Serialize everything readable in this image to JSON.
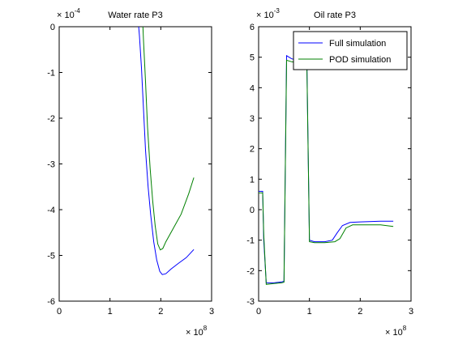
{
  "chart_data": [
    {
      "type": "line",
      "title": "Water rate P3",
      "xlim": [
        0,
        3
      ],
      "ylim": [
        -6,
        0
      ],
      "x_ticks": [
        0,
        1,
        2,
        3
      ],
      "y_ticks": [
        0,
        -1,
        -2,
        -3,
        -4,
        -5,
        -6
      ],
      "x_exponent": {
        "base": "× 10",
        "power": "8"
      },
      "y_exponent": {
        "base": "× 10",
        "power": "-4"
      },
      "series": [
        {
          "color": "#0000ff",
          "points": [
            [
              1.55,
              0.2
            ],
            [
              1.58,
              -0.2
            ],
            [
              1.62,
              -0.9
            ],
            [
              1.66,
              -1.8
            ],
            [
              1.7,
              -2.7
            ],
            [
              1.75,
              -3.5
            ],
            [
              1.8,
              -4.1
            ],
            [
              1.86,
              -4.7
            ],
            [
              1.92,
              -5.1
            ],
            [
              1.98,
              -5.35
            ],
            [
              2.03,
              -5.42
            ],
            [
              2.1,
              -5.4
            ],
            [
              2.2,
              -5.3
            ],
            [
              2.35,
              -5.17
            ],
            [
              2.5,
              -5.05
            ],
            [
              2.65,
              -4.87
            ]
          ]
        },
        {
          "color": "#008000",
          "points": [
            [
              1.64,
              0.2
            ],
            [
              1.66,
              -0.3
            ],
            [
              1.7,
              -1.2
            ],
            [
              1.74,
              -2.2
            ],
            [
              1.79,
              -3.1
            ],
            [
              1.84,
              -3.8
            ],
            [
              1.89,
              -4.35
            ],
            [
              1.94,
              -4.75
            ],
            [
              1.99,
              -4.88
            ],
            [
              2.04,
              -4.85
            ],
            [
              2.1,
              -4.7
            ],
            [
              2.25,
              -4.4
            ],
            [
              2.4,
              -4.1
            ],
            [
              2.55,
              -3.65
            ],
            [
              2.65,
              -3.3
            ]
          ]
        }
      ]
    },
    {
      "type": "line",
      "title": "Oil rate P3",
      "xlim": [
        0,
        3
      ],
      "ylim": [
        -3,
        6
      ],
      "x_ticks": [
        0,
        1,
        2,
        3
      ],
      "y_ticks": [
        6,
        5,
        4,
        3,
        2,
        1,
        0,
        -1,
        -2,
        -3
      ],
      "x_exponent": {
        "base": "× 10",
        "power": "8"
      },
      "y_exponent": {
        "base": "× 10",
        "power": "-3"
      },
      "legend": {
        "position": "top-right",
        "entries": [
          "Full simulation",
          "POD simulation"
        ]
      },
      "series": [
        {
          "name": "Full simulation",
          "color": "#0000ff",
          "points": [
            [
              0.0,
              0.6
            ],
            [
              0.08,
              0.6
            ],
            [
              0.1,
              -1.0
            ],
            [
              0.15,
              -2.4
            ],
            [
              0.3,
              -2.4
            ],
            [
              0.45,
              -2.37
            ],
            [
              0.5,
              -2.35
            ],
            [
              0.55,
              5.05
            ],
            [
              0.65,
              4.95
            ],
            [
              0.85,
              4.85
            ],
            [
              0.95,
              4.85
            ],
            [
              1.0,
              -1.0
            ],
            [
              1.1,
              -1.05
            ],
            [
              1.3,
              -1.05
            ],
            [
              1.45,
              -1.0
            ],
            [
              1.55,
              -0.75
            ],
            [
              1.65,
              -0.52
            ],
            [
              1.8,
              -0.42
            ],
            [
              2.0,
              -0.4
            ],
            [
              2.4,
              -0.38
            ],
            [
              2.65,
              -0.38
            ]
          ]
        },
        {
          "name": "POD simulation",
          "color": "#008000",
          "points": [
            [
              0.0,
              0.55
            ],
            [
              0.08,
              0.55
            ],
            [
              0.1,
              -0.8
            ],
            [
              0.15,
              -2.45
            ],
            [
              0.3,
              -2.42
            ],
            [
              0.45,
              -2.4
            ],
            [
              0.5,
              -2.38
            ],
            [
              0.55,
              4.9
            ],
            [
              0.65,
              4.85
            ],
            [
              0.85,
              4.8
            ],
            [
              0.95,
              4.8
            ],
            [
              1.0,
              -1.05
            ],
            [
              1.1,
              -1.08
            ],
            [
              1.3,
              -1.08
            ],
            [
              1.5,
              -1.05
            ],
            [
              1.6,
              -0.95
            ],
            [
              1.72,
              -0.6
            ],
            [
              1.85,
              -0.5
            ],
            [
              2.1,
              -0.5
            ],
            [
              2.4,
              -0.5
            ],
            [
              2.65,
              -0.55
            ]
          ]
        }
      ]
    }
  ]
}
